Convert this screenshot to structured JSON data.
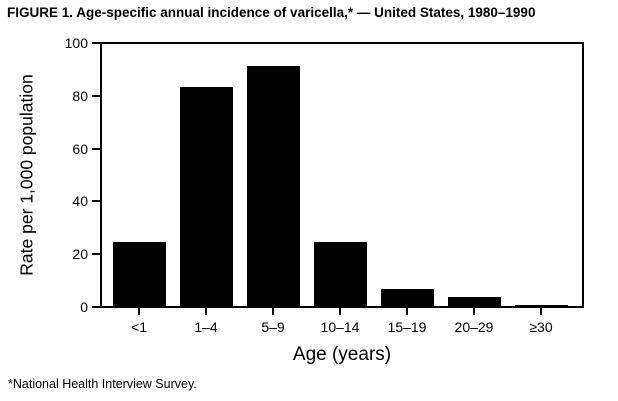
{
  "figure": {
    "title": "FIGURE 1. Age-specific annual incidence of varicella,* — United States, 1980–1990",
    "footnote": "*National Health Interview Survey."
  },
  "chart_data": {
    "type": "bar",
    "title": "FIGURE 1. Age-specific annual incidence of varicella,* — United States, 1980–1990",
    "categories": [
      "<1",
      "1–4",
      "5–9",
      "10–14",
      "15–19",
      "20–29",
      "≥30"
    ],
    "values": [
      25,
      83,
      91,
      25,
      7,
      4,
      1
    ],
    "xlabel": "Age (years)",
    "ylabel": "Rate per 1,000 population",
    "ylim": [
      0,
      100
    ],
    "yticks": [
      0,
      20,
      40,
      60,
      80,
      100
    ],
    "bar_color": "#000000",
    "grid": false,
    "legend_position": "none",
    "footnote": "*National Health Interview Survey."
  }
}
